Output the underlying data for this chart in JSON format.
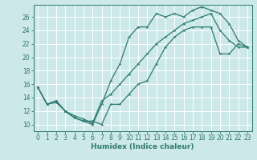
{
  "title": "",
  "xlabel": "Humidex (Indice chaleur)",
  "bg_color": "#cce8e8",
  "grid_color": "#ffffff",
  "line_color": "#2d7a6e",
  "xlim": [
    -0.5,
    23.5
  ],
  "ylim": [
    9.0,
    27.8
  ],
  "xticks": [
    0,
    1,
    2,
    3,
    4,
    5,
    6,
    7,
    8,
    9,
    10,
    11,
    12,
    13,
    14,
    15,
    16,
    17,
    18,
    19,
    20,
    21,
    22,
    23
  ],
  "yticks": [
    10,
    12,
    14,
    16,
    18,
    20,
    22,
    24,
    26
  ],
  "line1_x": [
    0,
    1,
    2,
    3,
    4,
    5,
    6,
    7,
    8,
    9,
    10,
    11,
    12,
    13,
    14,
    15,
    16,
    17,
    18,
    19,
    20,
    21,
    22,
    23
  ],
  "line1_y": [
    15.5,
    13.0,
    13.5,
    12.0,
    11.0,
    10.5,
    10.5,
    10.0,
    13.0,
    13.0,
    14.5,
    16.0,
    16.5,
    19.0,
    21.5,
    23.0,
    24.0,
    24.5,
    24.5,
    24.5,
    20.5,
    20.5,
    22.0,
    21.5
  ],
  "line2_x": [
    0,
    1,
    2,
    3,
    4,
    5,
    6,
    7,
    8,
    9,
    10,
    11,
    12,
    13,
    14,
    15,
    16,
    17,
    18,
    19,
    20,
    21,
    22,
    23
  ],
  "line2_y": [
    15.5,
    13.0,
    13.5,
    12.0,
    11.0,
    10.5,
    10.0,
    13.0,
    16.5,
    19.0,
    23.0,
    24.5,
    24.5,
    26.5,
    26.0,
    26.5,
    26.0,
    27.0,
    27.5,
    27.0,
    26.5,
    25.0,
    22.5,
    21.5
  ],
  "line3_x": [
    0,
    1,
    2,
    3,
    4,
    5,
    6,
    7,
    8,
    9,
    10,
    11,
    12,
    13,
    14,
    15,
    16,
    17,
    18,
    19,
    20,
    21,
    22,
    23
  ],
  "line3_y": [
    15.5,
    13.0,
    13.3,
    12.0,
    11.3,
    10.8,
    10.2,
    13.5,
    14.5,
    16.0,
    17.5,
    19.0,
    20.5,
    22.0,
    23.0,
    24.0,
    25.0,
    25.5,
    26.0,
    26.5,
    24.0,
    22.5,
    21.5,
    21.5
  ]
}
